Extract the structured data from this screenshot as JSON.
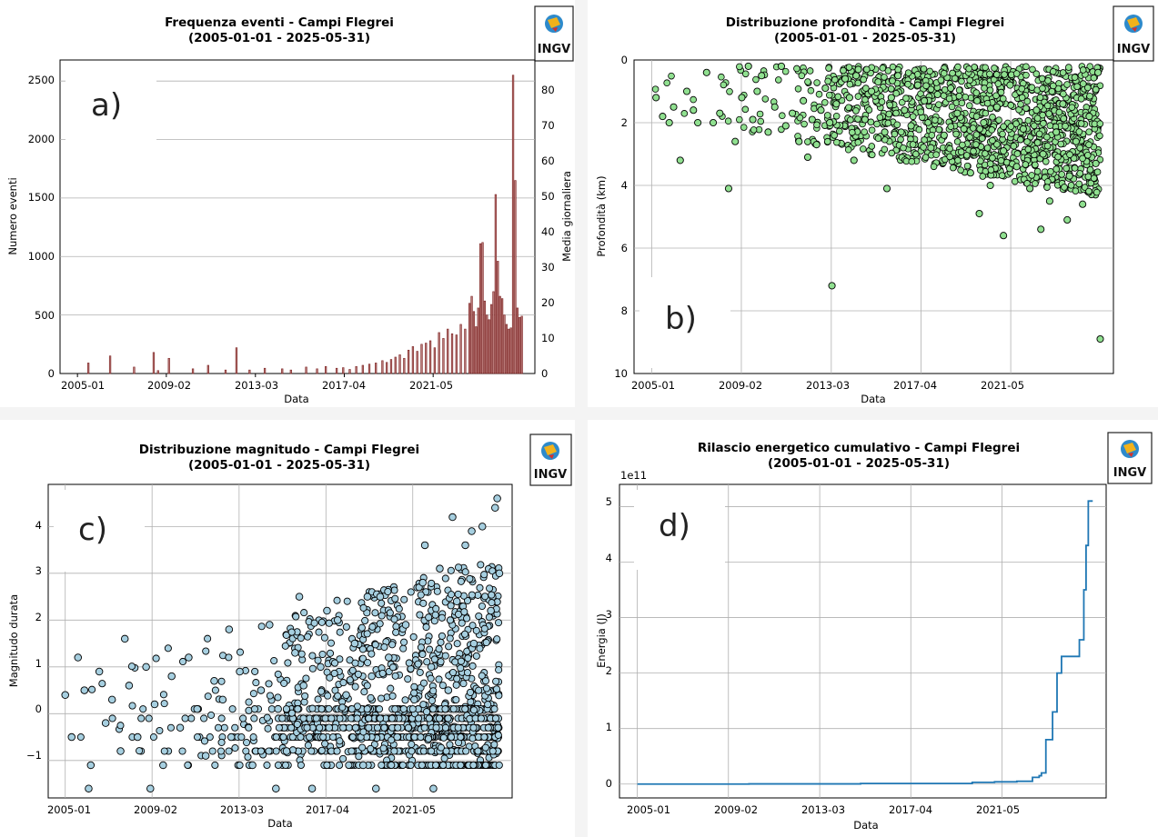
{
  "panels": [
    {
      "id": "a",
      "letter": "a)",
      "title_line1": "Frequenza eventi - Campi Flegrei",
      "title_line2": "(2005-01-01 - 2025-05-31)",
      "logo_text": "INGV",
      "xlabel": "Data",
      "ylabel": "Numero eventi",
      "y2label": "Media giornaliera",
      "x_ticks": [
        "2005-01",
        "2009-02",
        "2013-03",
        "2017-04",
        "2021-05"
      ],
      "y_ticks": [
        "0",
        "500",
        "1000",
        "1500",
        "2000",
        "2500"
      ],
      "y2_ticks": [
        "0",
        "10",
        "20",
        "30",
        "40",
        "50",
        "60",
        "70",
        "80"
      ]
    },
    {
      "id": "b",
      "letter": "b)",
      "title_line1": "Distribuzione profondità - Campi Flegrei",
      "title_line2": "(2005-01-01 - 2025-05-31)",
      "logo_text": "INGV",
      "xlabel": "Data",
      "ylabel": "Profondità (km)",
      "x_ticks": [
        "2005-01",
        "2009-02",
        "2013-03",
        "2017-04",
        "2021-05"
      ],
      "y_ticks": [
        "0",
        "2",
        "4",
        "6",
        "8",
        "10"
      ]
    },
    {
      "id": "c",
      "letter": "c)",
      "title_line1": "Distribuzione magnitudo - Campi Flegrei",
      "title_line2": "(2005-01-01 - 2025-05-31)",
      "logo_text": "INGV",
      "xlabel": "Data",
      "ylabel": "Magnitudo durata",
      "x_ticks": [
        "2005-01",
        "2009-02",
        "2013-03",
        "2017-04",
        "2021-05"
      ],
      "y_ticks": [
        "−1",
        "0",
        "1",
        "2",
        "3",
        "4"
      ]
    },
    {
      "id": "d",
      "letter": "d)",
      "title_line1": "Rilascio energetico cumulativo - Campi Flegrei",
      "title_line2": "(2005-01-01 - 2025-05-31)",
      "logo_text": "INGV",
      "xlabel": "Data",
      "ylabel": "Energia (J)",
      "offset_label": "1e11",
      "x_ticks": [
        "2005-01",
        "2009-02",
        "2013-03",
        "2017-04",
        "2021-05"
      ],
      "y_ticks": [
        "0",
        "1",
        "2",
        "3",
        "4",
        "5"
      ]
    }
  ],
  "colors": {
    "bar_fill": "#b97a78",
    "bar_edge": "#7a1f1f",
    "depth_point": "#90e090",
    "mag_point": "#a6cfe0",
    "energy_line": "#1f77b4",
    "right_axis": "#1a1aff"
  },
  "chart_data": [
    {
      "type": "bar",
      "title": "Frequenza eventi - Campi Flegrei (2005-01-01 - 2025-05-31)",
      "xlabel": "Data",
      "ylabel": "Numero eventi",
      "y2label": "Media giornaliera",
      "xlim": [
        2004.2,
        2026.0
      ],
      "ylim": [
        0,
        2680
      ],
      "y2lim": [
        0,
        88
      ],
      "grid": "y",
      "bar_width_years": 0.07,
      "x": [
        2005.5,
        2006.5,
        2007.6,
        2008.5,
        2008.7,
        2009.2,
        2010.3,
        2011.0,
        2011.8,
        2012.3,
        2012.9,
        2013.6,
        2014.4,
        2014.8,
        2015.5,
        2016.0,
        2016.4,
        2016.9,
        2017.2,
        2017.5,
        2017.8,
        2018.1,
        2018.4,
        2018.7,
        2019.0,
        2019.2,
        2019.4,
        2019.6,
        2019.8,
        2020.0,
        2020.2,
        2020.4,
        2020.6,
        2020.8,
        2021.0,
        2021.2,
        2021.4,
        2021.6,
        2021.8,
        2022.0,
        2022.2,
        2022.4,
        2022.6,
        2022.8,
        2023.0,
        2023.1,
        2023.2,
        2023.3,
        2023.4,
        2023.5,
        2023.6,
        2023.7,
        2023.8,
        2023.9,
        2024.0,
        2024.1,
        2024.2,
        2024.3,
        2024.4,
        2024.5,
        2024.6,
        2024.7,
        2024.8,
        2024.9,
        2025.0,
        2025.1,
        2025.2,
        2025.3,
        2025.4
      ],
      "values": [
        90,
        150,
        55,
        180,
        25,
        130,
        40,
        70,
        30,
        220,
        30,
        45,
        40,
        30,
        55,
        40,
        60,
        45,
        50,
        35,
        60,
        70,
        80,
        90,
        110,
        95,
        120,
        140,
        160,
        130,
        200,
        230,
        190,
        250,
        260,
        280,
        220,
        350,
        300,
        380,
        340,
        330,
        420,
        380,
        600,
        660,
        530,
        400,
        560,
        1110,
        1120,
        620,
        500,
        460,
        590,
        700,
        1530,
        960,
        660,
        640,
        500,
        420,
        380,
        390,
        2550,
        1650,
        560,
        480,
        490
      ],
      "average_daily": [
        3,
        5,
        2,
        6,
        1,
        4,
        1,
        2,
        1,
        7,
        1,
        1.5,
        1.3,
        1,
        1.8,
        1.3,
        2,
        1.5,
        1.6,
        1.1,
        2,
        2.3,
        2.6,
        3,
        3.6,
        3.1,
        3.9,
        4.6,
        5.3,
        4.3,
        6.6,
        7.6,
        6.2,
        8.2,
        8.5,
        9.2,
        7.2,
        11.5,
        9.8,
        12.5,
        11.1,
        10.8,
        13.8,
        12.5,
        19.7,
        21.6,
        17.4,
        13.1,
        18.4,
        36.4,
        36.7,
        20.3,
        16.4,
        15.1,
        19.3,
        23,
        50.2,
        31.5,
        21.6,
        21,
        16.4,
        13.8,
        12.5,
        12.8,
        83.6,
        54.1,
        18.4,
        15.7,
        16.1
      ]
    },
    {
      "type": "scatter",
      "title": "Distribuzione profondità - Campi Flegrei (2005-01-01 - 2025-05-31)",
      "xlabel": "Data",
      "ylabel": "Profondità (km)",
      "xlim": [
        2004.2,
        2026.0
      ],
      "ylim": [
        10,
        0
      ],
      "y_inverted": true,
      "grid": true,
      "x": [
        2005.2,
        2005.5,
        2005.8,
        2006.0,
        2006.3,
        2006.6,
        2006.9,
        2007.1,
        2007.5,
        2007.8,
        2008.1,
        2008.5,
        2008.8,
        2009.1,
        2009.4,
        2009.6,
        2009.8,
        2010.0,
        2010.3,
        2010.6,
        2010.9,
        2011.1,
        2011.4,
        2011.7,
        2011.9,
        2012.1,
        2012.3,
        2012.5,
        2012.7,
        2012.9,
        2013.1,
        2013.4,
        2013.8,
        2014.0,
        2014.2,
        2014.4,
        2014.7,
        2015.0,
        2015.3,
        2015.6,
        2015.9,
        2016.2,
        2016.5,
        2016.8,
        2017.1,
        2017.4,
        2017.7,
        2018.0,
        2018.3,
        2018.6,
        2018.9,
        2019.2,
        2019.5,
        2019.8,
        2020.1,
        2020.4,
        2020.7,
        2021.0,
        2021.3,
        2021.6,
        2021.9,
        2022.2,
        2022.5,
        2022.8,
        2023.1,
        2023.4,
        2023.7,
        2024.0,
        2024.3,
        2024.6,
        2024.9,
        2025.2,
        2014.3,
        2015.7,
        2021.0,
        2023.9,
        2025.3,
        2013.2,
        2019.9,
        2022.7
      ],
      "values": [
        1.2,
        1.8,
        2.0,
        1.5,
        3.2,
        1.0,
        1.6,
        2.0,
        0.4,
        2.0,
        1.7,
        4.1,
        2.6,
        1.2,
        0.2,
        1.9,
        1.0,
        0.5,
        2.3,
        1.5,
        0.2,
        2.1,
        1.7,
        2.6,
        1.3,
        3.1,
        1.9,
        2.7,
        1.6,
        0.9,
        2.0,
        1.4,
        0.6,
        1.2,
        3.2,
        0.3,
        1.9,
        1.0,
        0.7,
        2.3,
        1.2,
        0.5,
        1.6,
        2.1,
        0.8,
        1.3,
        2.8,
        1.1,
        2.4,
        0.9,
        1.7,
        2.2,
        3.6,
        1.3,
        2.0,
        4.0,
        1.5,
        2.9,
        0.8,
        3.4,
        2.2,
        4.1,
        1.6,
        3.0,
        4.5,
        2.3,
        1.4,
        3.7,
        2.6,
        4.6,
        1.8,
        3.3,
        0.5,
        4.1,
        5.6,
        5.1,
        0.4,
        7.2,
        4.9,
        5.4
      ]
    },
    {
      "type": "scatter",
      "title": "Distribuzione magnitudo - Campi Flegrei (2005-01-01 - 2025-05-31)",
      "xlabel": "Data",
      "ylabel": "Magnitudo durata",
      "xlim": [
        2004.2,
        2026.0
      ],
      "ylim": [
        -1.8,
        4.9
      ],
      "grid": true,
      "x": [
        2005.0,
        2005.3,
        2005.6,
        2005.9,
        2006.2,
        2006.6,
        2006.9,
        2007.2,
        2007.6,
        2008.0,
        2008.4,
        2008.8,
        2009.2,
        2009.6,
        2010.0,
        2010.4,
        2010.8,
        2011.2,
        2011.6,
        2012.0,
        2012.4,
        2012.8,
        2013.2,
        2013.8,
        2014.2,
        2014.6,
        2015.0,
        2015.4,
        2015.8,
        2016.2,
        2016.6,
        2017.0,
        2017.4,
        2017.8,
        2018.2,
        2018.6,
        2019.0,
        2019.4,
        2019.8,
        2020.2,
        2020.6,
        2021.0,
        2021.4,
        2021.8,
        2022.2,
        2022.6,
        2023.0,
        2023.4,
        2023.8,
        2024.2,
        2024.6,
        2025.0,
        2025.3,
        2007.8,
        2012.7,
        2016.0,
        2017.3,
        2019.2,
        2021.9,
        2023.2,
        2024.1,
        2025.2,
        2025.4,
        2006.1,
        2009.0,
        2014.9,
        2019.6,
        2022.3
      ],
      "values": [
        0.4,
        -0.5,
        1.2,
        0.5,
        -1.1,
        0.9,
        -0.2,
        0.3,
        -0.8,
        0.6,
        -0.5,
        1.0,
        0.2,
        -1.1,
        0.8,
        -0.3,
        1.2,
        0.1,
        -0.9,
        0.7,
        0.3,
        -0.5,
        0.9,
        -1.1,
        0.5,
        1.9,
        0.1,
        -0.8,
        1.3,
        0.6,
        -1.6,
        1.0,
        -0.3,
        2.0,
        0.4,
        1.5,
        -1.1,
        0.8,
        2.5,
        1.2,
        -0.5,
        1.9,
        0.3,
        2.8,
        1.0,
        3.1,
        0.5,
        2.4,
        3.6,
        1.5,
        4.0,
        2.2,
        4.6,
        1.6,
        1.8,
        2.5,
        2.2,
        2.5,
        3.6,
        4.2,
        3.9,
        4.4,
        3.0,
        -1.6,
        -1.6,
        -1.6,
        -1.6,
        -1.6
      ]
    },
    {
      "type": "line",
      "title": "Rilascio energetico cumulativo - Campi Flegrei (2005-01-01 - 2025-05-31)",
      "xlabel": "Data",
      "ylabel": "Energia (J)",
      "y_scale_factor": "1e11",
      "xlim": [
        2004.2,
        2026.0
      ],
      "ylim": [
        -0.25,
        5.4
      ],
      "grid": true,
      "x": [
        2005.0,
        2010.0,
        2015.0,
        2020.0,
        2021.0,
        2022.0,
        2022.7,
        2023.0,
        2023.1,
        2023.3,
        2023.5,
        2023.6,
        2023.8,
        2024.0,
        2024.3,
        2024.6,
        2024.8,
        2025.0,
        2025.1,
        2025.2,
        2025.4
      ],
      "values": [
        0.0,
        0.003,
        0.01,
        0.03,
        0.04,
        0.05,
        0.12,
        0.15,
        0.2,
        0.8,
        0.8,
        1.3,
        2.0,
        2.3,
        2.3,
        2.3,
        2.6,
        3.5,
        4.3,
        5.1,
        5.1
      ]
    }
  ]
}
